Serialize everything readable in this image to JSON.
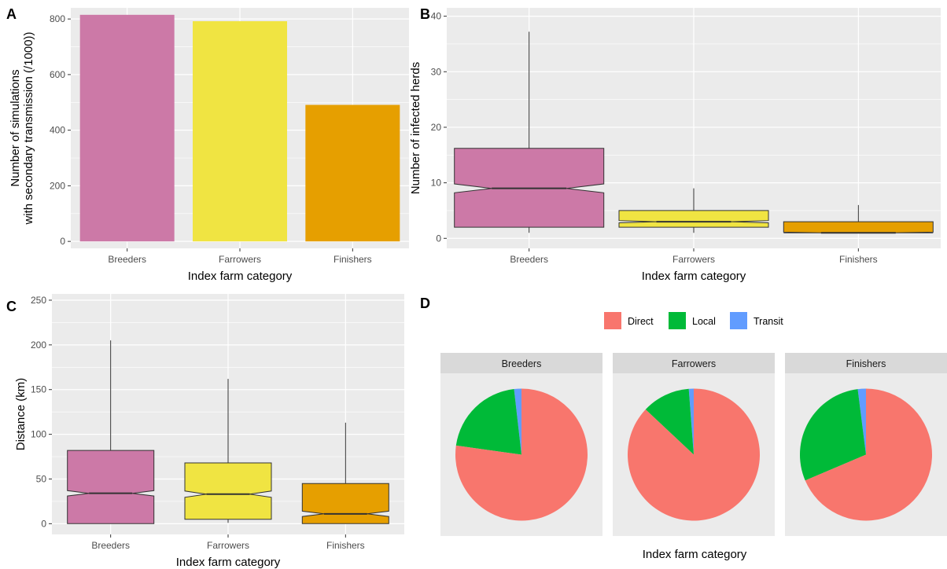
{
  "figure": {
    "panel_labels": [
      "A",
      "B",
      "C",
      "D"
    ]
  },
  "colors": {
    "Breeders": "#cc79a7",
    "Farrowers": "#f0e442",
    "Finishers": "#e69f00",
    "Direct": "#f8766d",
    "Local": "#00ba38",
    "Transit": "#619cff",
    "panel_bg": "#ebebeb",
    "grid": "#ffffff",
    "strip_bg": "#d9d9d9"
  },
  "chart_data": [
    {
      "id": "A",
      "type": "bar",
      "categories": [
        "Breeders",
        "Farrowers",
        "Finishers"
      ],
      "values": [
        815,
        792,
        491
      ],
      "xlabel": "Index farm category",
      "ylabel_lines": [
        "Number of simulations",
        "with secondary transmission (/1000))"
      ],
      "ylim": [
        -25,
        840
      ],
      "yticks": [
        0,
        200,
        400,
        600,
        800
      ],
      "grid": true
    },
    {
      "id": "B",
      "type": "box",
      "notched": true,
      "categories": [
        "Breeders",
        "Farrowers",
        "Finishers"
      ],
      "boxes": [
        {
          "whisker_low": 1,
          "q1": 2,
          "median": 9,
          "q3": 16.2,
          "whisker_high": 37.2,
          "notch": 0.8
        },
        {
          "whisker_low": 1,
          "q1": 2,
          "median": 3,
          "q3": 5,
          "whisker_high": 9,
          "notch": 0.2
        },
        {
          "whisker_low": 1,
          "q1": 1,
          "median": 1,
          "q3": 3,
          "whisker_high": 6,
          "notch": 0.12
        }
      ],
      "xlabel": "Index farm category",
      "ylabel": "Number of infected herds",
      "ylim": [
        -1.8,
        41.5
      ],
      "yticks": [
        0,
        10,
        20,
        30,
        40
      ],
      "grid": true
    },
    {
      "id": "C",
      "type": "box",
      "notched": true,
      "categories": [
        "Breeders",
        "Farrowers",
        "Finishers"
      ],
      "boxes": [
        {
          "whisker_low": 0,
          "q1": 0,
          "median": 34,
          "q3": 82,
          "whisker_high": 205,
          "notch": 3
        },
        {
          "whisker_low": 1,
          "q1": 5,
          "median": 33,
          "q3": 68,
          "whisker_high": 162,
          "notch": 3.5
        },
        {
          "whisker_low": 0,
          "q1": 0,
          "median": 11,
          "q3": 45,
          "whisker_high": 113,
          "notch": 3
        }
      ],
      "xlabel": "Index farm category",
      "ylabel": "Distance (km)",
      "ylim": [
        -12,
        257
      ],
      "yticks": [
        0,
        50,
        100,
        150,
        200,
        250
      ],
      "grid": true
    },
    {
      "id": "D",
      "type": "pie",
      "facets": [
        {
          "name": "Breeders",
          "slices": [
            {
              "label": "Direct",
              "value": 0.772
            },
            {
              "label": "Local",
              "value": 0.21
            },
            {
              "label": "Transit",
              "value": 0.018
            }
          ]
        },
        {
          "name": "Farrowers",
          "slices": [
            {
              "label": "Direct",
              "value": 0.87
            },
            {
              "label": "Local",
              "value": 0.118
            },
            {
              "label": "Transit",
              "value": 0.012
            }
          ]
        },
        {
          "name": "Finishers",
          "slices": [
            {
              "label": "Direct",
              "value": 0.686
            },
            {
              "label": "Local",
              "value": 0.294
            },
            {
              "label": "Transit",
              "value": 0.02
            }
          ]
        }
      ],
      "legend": [
        "Direct",
        "Local",
        "Transit"
      ],
      "legend_position": "top",
      "xlabel": "Index farm category"
    }
  ]
}
